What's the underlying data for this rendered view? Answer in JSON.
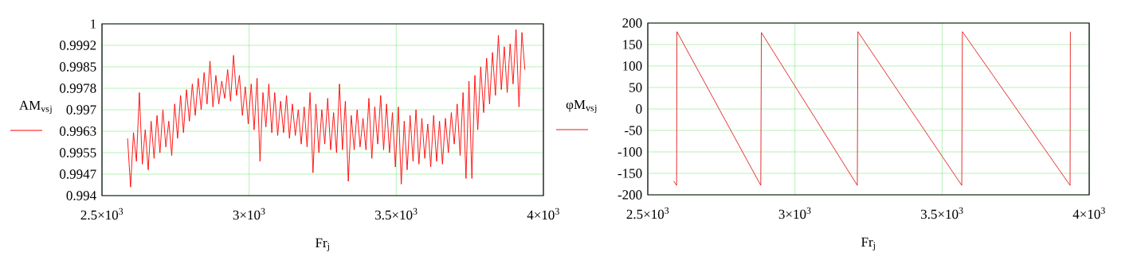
{
  "chart_data": [
    {
      "type": "line",
      "xlabel": "Fr$_{j}$",
      "grid": true,
      "legend": "left",
      "xlim": [
        2500,
        4000
      ],
      "ylim": [
        0.994,
        1
      ],
      "xticks": [
        {
          "value": 2500,
          "label": "2.5×10$^{3}$"
        },
        {
          "value": 3000,
          "label": "3×10$^{3}$"
        },
        {
          "value": 3500,
          "label": "3.5×10$^{3}$"
        },
        {
          "value": 4000,
          "label": "4×10$^{3}$"
        }
      ],
      "yticks": [
        0.994,
        {
          "value": 0.99475,
          "label": "0.9947"
        },
        0.9955,
        {
          "value": 0.99625,
          "label": "0.9963"
        },
        0.997,
        {
          "value": 0.99775,
          "label": "0.9978"
        },
        0.9985,
        {
          "value": 0.99925,
          "label": "0.9992"
        },
        1
      ],
      "x": [
        2587,
        2597,
        2607,
        2617,
        2627,
        2637,
        2647,
        2657,
        2667,
        2677,
        2687,
        2697,
        2707,
        2717,
        2727,
        2737,
        2747,
        2757,
        2767,
        2777,
        2787,
        2797,
        2807,
        2817,
        2827,
        2837,
        2847,
        2857,
        2867,
        2877,
        2887,
        2897,
        2907,
        2917,
        2927,
        2937,
        2947,
        2957,
        2967,
        2977,
        2987,
        2997,
        3007,
        3017,
        3027,
        3037,
        3047,
        3057,
        3067,
        3077,
        3087,
        3097,
        3107,
        3117,
        3127,
        3137,
        3147,
        3157,
        3167,
        3177,
        3187,
        3197,
        3207,
        3217,
        3227,
        3237,
        3247,
        3257,
        3267,
        3277,
        3287,
        3297,
        3307,
        3317,
        3327,
        3337,
        3347,
        3357,
        3367,
        3377,
        3387,
        3397,
        3407,
        3417,
        3427,
        3437,
        3447,
        3457,
        3467,
        3477,
        3487,
        3497,
        3507,
        3517,
        3527,
        3537,
        3547,
        3557,
        3567,
        3577,
        3587,
        3597,
        3607,
        3617,
        3627,
        3637,
        3647,
        3657,
        3667,
        3677,
        3687,
        3697,
        3707,
        3717,
        3727,
        3737,
        3747,
        3757,
        3767,
        3777,
        3787,
        3797,
        3807,
        3817,
        3827,
        3837,
        3847,
        3857,
        3867,
        3877,
        3887,
        3897,
        3907,
        3917,
        3927,
        3937
      ],
      "series": [
        {
          "name": "AM$_{vs}$$_{j}$",
          "color": "#ff0000",
          "values": [
            0.996,
            0.9943,
            0.9962,
            0.9952,
            0.9976,
            0.9951,
            0.9963,
            0.9949,
            0.9966,
            0.9953,
            0.9968,
            0.9955,
            0.997,
            0.9957,
            0.9966,
            0.9954,
            0.9972,
            0.996,
            0.9975,
            0.9962,
            0.9977,
            0.9966,
            0.9979,
            0.9968,
            0.9981,
            0.997,
            0.9983,
            0.9972,
            0.9987,
            0.9971,
            0.9982,
            0.9972,
            0.998,
            0.9974,
            0.9984,
            0.9973,
            0.9989,
            0.9975,
            0.9982,
            0.9968,
            0.9978,
            0.9965,
            0.9979,
            0.9963,
            0.9981,
            0.9952,
            0.9976,
            0.9964,
            0.9979,
            0.9962,
            0.9976,
            0.9961,
            0.9973,
            0.9962,
            0.9975,
            0.996,
            0.9972,
            0.9961,
            0.997,
            0.9958,
            0.9971,
            0.9957,
            0.9976,
            0.9948,
            0.9972,
            0.9955,
            0.997,
            0.9958,
            0.9974,
            0.9956,
            0.9969,
            0.9955,
            0.9979,
            0.9956,
            0.9973,
            0.9945,
            0.9968,
            0.9956,
            0.997,
            0.9957,
            0.9967,
            0.9956,
            0.9974,
            0.9953,
            0.9971,
            0.9958,
            0.9975,
            0.9956,
            0.9972,
            0.9955,
            0.9969,
            0.995,
            0.9971,
            0.9944,
            0.9966,
            0.9949,
            0.9968,
            0.9952,
            0.997,
            0.9951,
            0.9967,
            0.9953,
            0.9965,
            0.995,
            0.9968,
            0.9952,
            0.9966,
            0.9951,
            0.9967,
            0.9955,
            0.9969,
            0.9958,
            0.9972,
            0.9954,
            0.9976,
            0.9946,
            0.998,
            0.9946,
            0.9982,
            0.9963,
            0.9985,
            0.9969,
            0.9988,
            0.9972,
            0.999,
            0.9975,
            0.9996,
            0.9977,
            0.9992,
            0.9976,
            0.9993,
            0.9979,
            0.9998,
            0.9971,
            0.9997,
            0.9984
          ]
        }
      ]
    },
    {
      "type": "line",
      "xlabel": "Fr$_{j}$",
      "grid": true,
      "legend": "left",
      "xlim": [
        2500,
        4000
      ],
      "ylim": [
        -200,
        200
      ],
      "xticks": [
        {
          "value": 2500,
          "label": "2.5×10$^{3}$"
        },
        {
          "value": 3000,
          "label": "3×10$^{3}$"
        },
        {
          "value": 3500,
          "label": "3.5×10$^{3}$"
        },
        {
          "value": 4000,
          "label": "4×10$^{3}$"
        }
      ],
      "yticks": [
        -200,
        -150,
        -100,
        -50,
        0,
        50,
        100,
        150,
        200
      ],
      "x": [
        2588,
        2598,
        2599,
        2884,
        2886,
        3212,
        3214,
        3567,
        3569,
        3935,
        3936
      ],
      "series": [
        {
          "name": "φM$_{vs}$$_{j}$",
          "color": "#e31a1a",
          "values": [
            -168,
            -178,
            180,
            -178,
            178,
            -178,
            180,
            -178,
            180,
            -178,
            180
          ]
        }
      ]
    }
  ]
}
